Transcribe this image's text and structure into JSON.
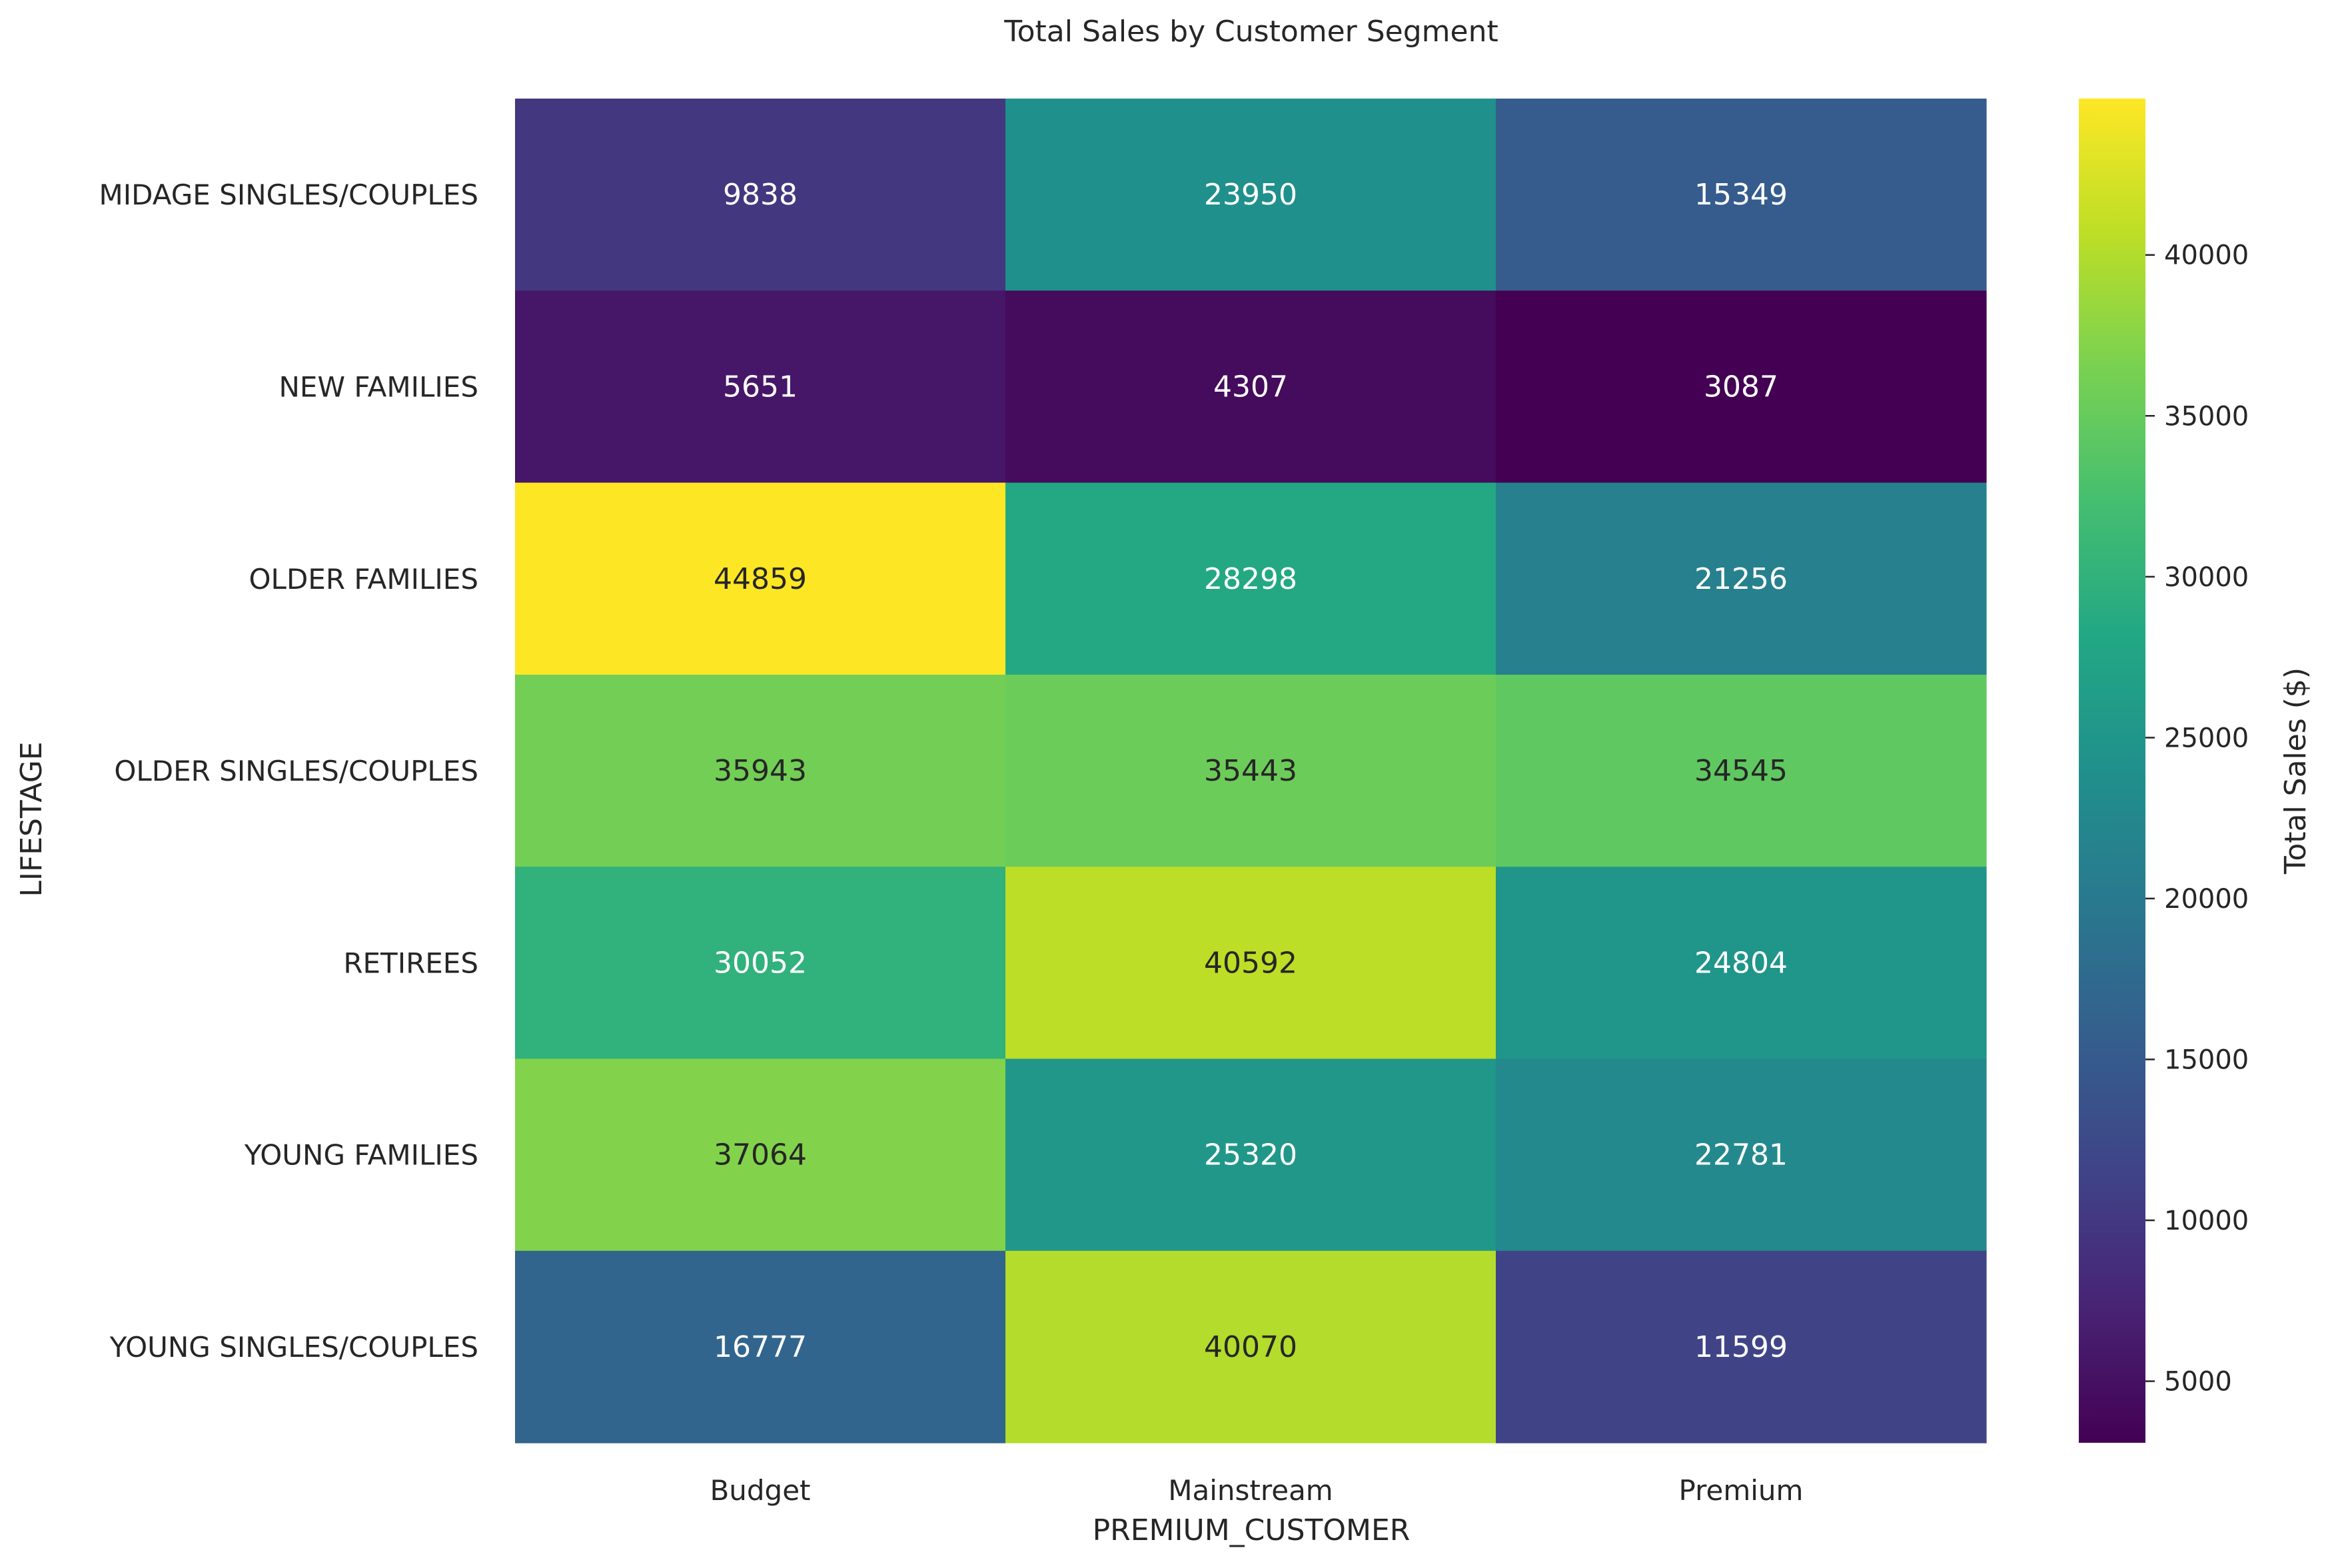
{
  "chart_data": {
    "type": "heatmap",
    "title": "Total Sales by Customer Segment",
    "xlabel": "PREMIUM_CUSTOMER",
    "ylabel": "LIFESTAGE",
    "x_categories": [
      "Budget",
      "Mainstream",
      "Premium"
    ],
    "y_categories": [
      "MIDAGE SINGLES/COUPLES",
      "NEW FAMILIES",
      "OLDER FAMILIES",
      "OLDER SINGLES/COUPLES",
      "RETIREES",
      "YOUNG FAMILIES",
      "YOUNG SINGLES/COUPLES"
    ],
    "values": [
      [
        9838,
        23950,
        15349
      ],
      [
        5651,
        4307,
        3087
      ],
      [
        44859,
        28298,
        21256
      ],
      [
        35943,
        35443,
        34545
      ],
      [
        30052,
        40592,
        24804
      ],
      [
        37064,
        25320,
        22781
      ],
      [
        16777,
        40070,
        11599
      ]
    ],
    "colormap": "viridis",
    "colorbar": {
      "label": "Total Sales ($)",
      "range": [
        3087,
        44859
      ],
      "ticks": [
        5000,
        10000,
        15000,
        20000,
        25000,
        30000,
        35000,
        40000
      ]
    },
    "annotations": true,
    "grid": false
  }
}
